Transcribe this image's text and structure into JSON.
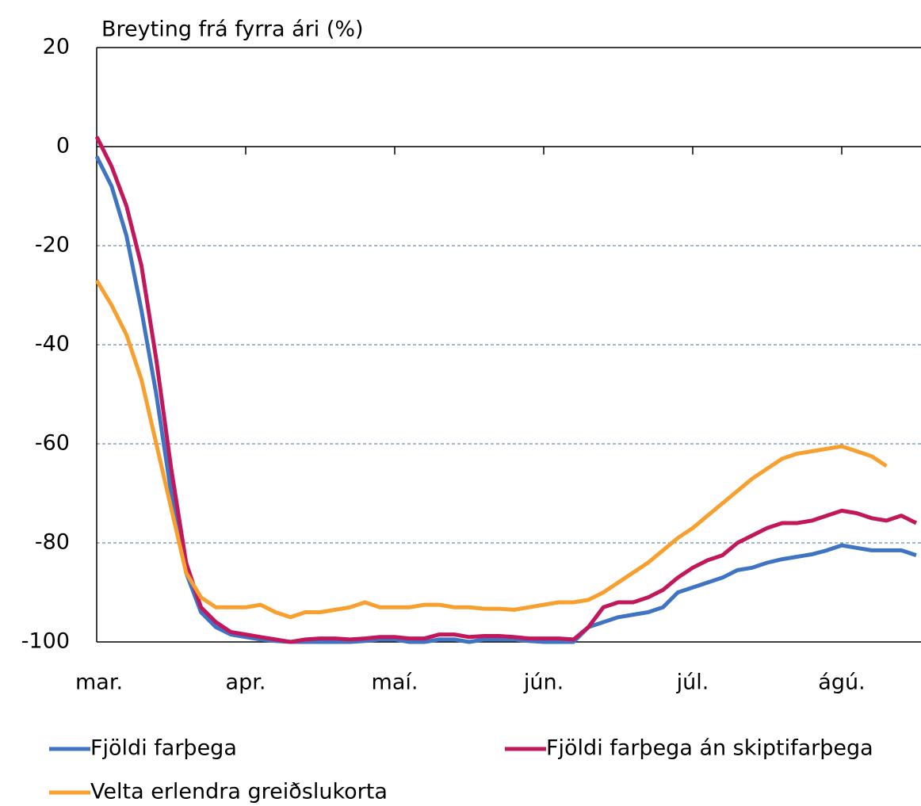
{
  "chart_data": {
    "type": "line",
    "title": "Breyting frá fyrra ári (%)",
    "categories": [
      "mar.",
      null,
      null,
      null,
      null,
      null,
      null,
      null,
      null,
      null,
      "apr.",
      null,
      null,
      null,
      null,
      null,
      null,
      null,
      null,
      null,
      "maí.",
      null,
      null,
      null,
      null,
      null,
      null,
      null,
      null,
      null,
      "jún.",
      null,
      null,
      null,
      null,
      null,
      null,
      null,
      null,
      null,
      "júl.",
      null,
      null,
      null,
      null,
      null,
      null,
      null,
      null,
      null,
      "ágú.",
      null,
      null,
      null,
      null,
      null
    ],
    "series": [
      {
        "name": "Fjöldi farþega",
        "color": "#3f74c2",
        "values": [
          -2,
          -8,
          -18,
          -33,
          -50,
          -70,
          -86,
          -94,
          -97,
          -98.5,
          -99,
          -99.5,
          -99.8,
          -100,
          -100,
          -100,
          -100,
          -100,
          -99.8,
          -99.5,
          -99.5,
          -100,
          -100,
          -99.5,
          -99.5,
          -100,
          -99.5,
          -99.5,
          -99.5,
          -99.8,
          -100,
          -100,
          -100,
          -97,
          -96,
          -95,
          -94.5,
          -94,
          -93,
          -90,
          -89,
          -88,
          -87,
          -85.5,
          -85,
          -84,
          -83.3,
          -82.8,
          -82.3,
          -81.5,
          -80.5,
          -81,
          -81.5,
          -81.5,
          -81.5,
          -82.5
        ]
      },
      {
        "name": "Fjöldi farþega án skiptifarþega",
        "color": "#c2185b",
        "values": [
          2,
          -4,
          -12,
          -24,
          -43,
          -65,
          -84,
          -93,
          -96,
          -98,
          -98.5,
          -99,
          -99.5,
          -100,
          -99.5,
          -99.3,
          -99.3,
          -99.5,
          -99.3,
          -99,
          -99,
          -99.3,
          -99.3,
          -98.5,
          -98.5,
          -99,
          -98.8,
          -98.8,
          -99,
          -99.3,
          -99.3,
          -99.3,
          -99.5,
          -97,
          -93,
          -92,
          -92,
          -91,
          -89.5,
          -87,
          -85,
          -83.5,
          -82.5,
          -80,
          -78.5,
          -77,
          -76,
          -76,
          -75.5,
          -74.5,
          -73.5,
          -74,
          -75,
          -75.5,
          -74.5,
          -76
        ]
      },
      {
        "name": "Velta erlendra greiðslukorta",
        "color": "#f7a030",
        "values": [
          -27,
          -32,
          -38,
          -47,
          -60,
          -73,
          -86,
          -91,
          -93,
          -93,
          -93,
          -92.5,
          -94,
          -95,
          -94,
          -94,
          -93.5,
          -93,
          -92,
          -93,
          -93,
          -93,
          -92.5,
          -92.5,
          -93,
          -93,
          -93.3,
          -93.3,
          -93.5,
          -93,
          -92.5,
          -92,
          -92,
          -91.5,
          -90,
          -88,
          -86,
          -84,
          -81.5,
          -79,
          -77,
          -74.5,
          -72,
          -69.5,
          -67,
          -65,
          -63,
          -62,
          -61.5,
          -61,
          -60.5,
          -61.5,
          -62.5,
          -64.5,
          null,
          null
        ]
      }
    ],
    "ylim": [
      -100,
      20
    ],
    "yticks": [
      20,
      0,
      -20,
      -40,
      -60,
      -80,
      -100
    ],
    "grid": true
  }
}
